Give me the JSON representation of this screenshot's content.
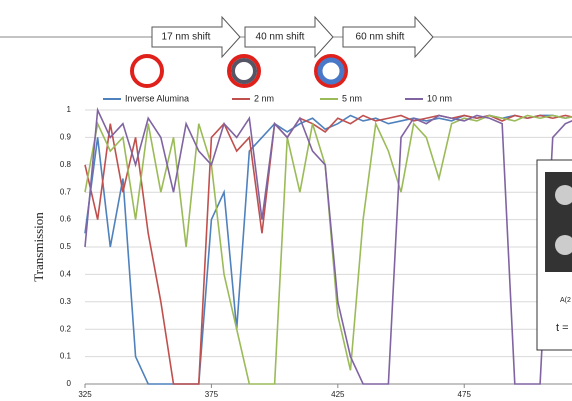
{
  "chart_data": {
    "type": "line",
    "y_label": "Transmission",
    "annotations": [
      "17 nm shift",
      "40 nm shift",
      "60 nm shift"
    ],
    "inset_texts": [
      "A(2",
      "t ="
    ],
    "x": [
      325,
      330,
      335,
      340,
      345,
      350,
      355,
      360,
      365,
      370,
      375,
      380,
      385,
      390,
      395,
      400,
      405,
      410,
      415,
      420,
      425,
      430,
      435,
      440,
      445,
      450,
      455,
      460,
      465,
      470,
      475,
      480,
      485,
      490,
      495,
      500,
      505,
      510,
      515,
      520
    ],
    "xlim": [
      325,
      520
    ],
    "xticks": [
      325,
      375,
      425,
      475
    ],
    "ylim": [
      0,
      1
    ],
    "yticks": [
      0,
      0.1,
      0.2,
      0.3,
      0.4,
      0.5,
      0.6,
      0.7,
      0.8,
      0.9,
      1
    ],
    "grid": true,
    "series": [
      {
        "name": "Inverse Alumina",
        "color": "#4f81bd",
        "values": [
          0.55,
          0.9,
          0.5,
          0.75,
          0.1,
          0,
          0,
          0,
          0,
          0,
          0.6,
          0.7,
          0.2,
          0.85,
          0.9,
          0.95,
          0.92,
          0.95,
          0.97,
          0.93,
          0.95,
          0.98,
          0.96,
          0.97,
          0.95,
          0.96,
          0.97,
          0.96,
          0.97,
          0.96,
          0.98,
          0.97,
          0.98,
          0.97,
          0.98,
          0.97,
          0.98,
          0.98,
          0.97,
          0.98
        ]
      },
      {
        "name": "2 nm",
        "color": "#c0504d",
        "values": [
          0.8,
          0.6,
          0.95,
          0.7,
          0.9,
          0.55,
          0.3,
          0,
          0,
          0,
          0.9,
          0.95,
          0.85,
          0.9,
          0.55,
          0.95,
          0.9,
          0.97,
          0.95,
          0.92,
          0.97,
          0.95,
          0.98,
          0.96,
          0.97,
          0.98,
          0.96,
          0.97,
          0.98,
          0.97,
          0.98,
          0.97,
          0.98,
          0.96,
          0.98,
          0.97,
          0.98,
          0.97,
          0.98,
          0.97
        ]
      },
      {
        "name": "5 nm",
        "color": "#9bbb59",
        "values": [
          0.7,
          0.95,
          0.85,
          0.9,
          0.6,
          0.95,
          0.7,
          0.9,
          0.5,
          0.95,
          0.8,
          0.4,
          0.2,
          0,
          0,
          0,
          0.9,
          0.7,
          0.95,
          0.8,
          0.25,
          0.05,
          0.6,
          0.95,
          0.85,
          0.7,
          0.95,
          0.9,
          0.75,
          0.95,
          0.97,
          0.96,
          0.98,
          0.97,
          0.96,
          0.98,
          0.97,
          0.98,
          0.97,
          0.98
        ]
      },
      {
        "name": "10 nm",
        "color": "#8064a2",
        "values": [
          0.5,
          1,
          0.9,
          0.95,
          0.8,
          0.97,
          0.9,
          0.7,
          0.95,
          0.85,
          0.8,
          0.95,
          0.9,
          0.97,
          0.6,
          0.95,
          0.9,
          0.97,
          0.85,
          0.8,
          0.3,
          0.1,
          0,
          0,
          0,
          0.9,
          0.97,
          0.95,
          0.98,
          0.97,
          0.96,
          0.98,
          0.97,
          0.95,
          0,
          0,
          0,
          0.9,
          0.95,
          0.97
        ]
      }
    ]
  }
}
